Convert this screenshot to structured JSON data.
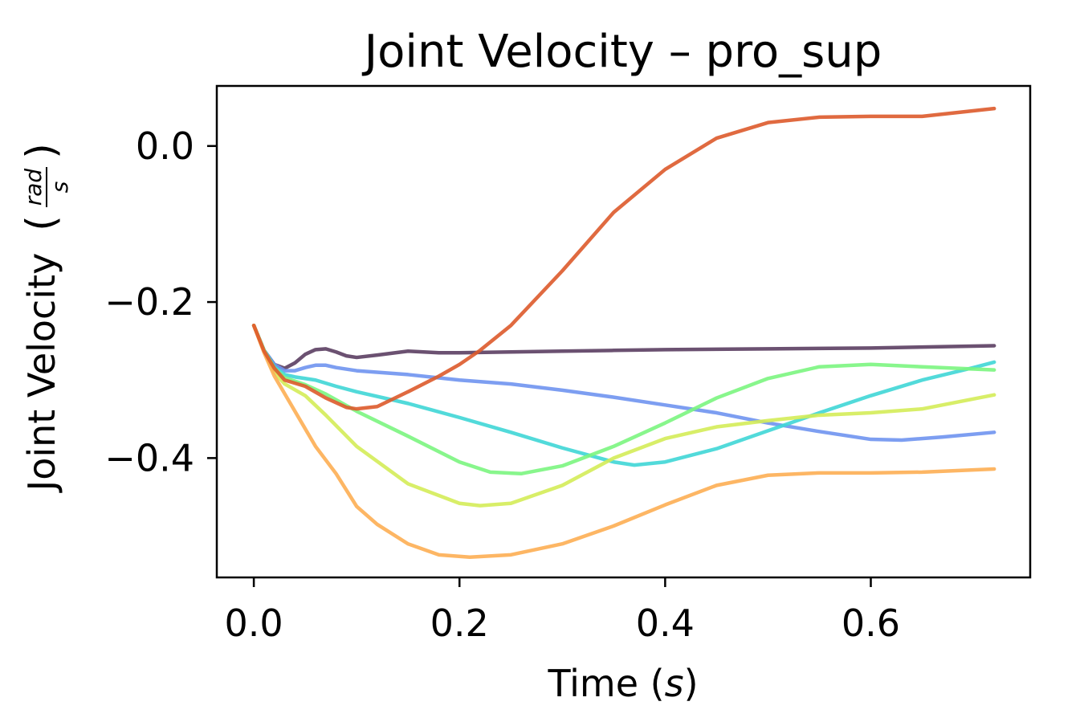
{
  "chart_data": {
    "type": "line",
    "title": "Joint Velocity – pro_sup",
    "xlabel_main": "Time (",
    "xlabel_unit": "s",
    "xlabel_close": ")",
    "ylabel_main": "Joint Velocity",
    "ylabel_unit_num": "rad",
    "ylabel_unit_den": "s",
    "xlim": [
      -0.036,
      0.755
    ],
    "ylim": [
      -0.553,
      0.077
    ],
    "xticks": [
      0.0,
      0.2,
      0.4,
      0.6
    ],
    "xtick_labels": [
      "0.0",
      "0.2",
      "0.4",
      "0.6"
    ],
    "yticks": [
      0.0,
      -0.2,
      -0.4
    ],
    "ytick_labels": [
      "0.0",
      "−0.2",
      "−0.4"
    ],
    "grid": false,
    "legend": "none",
    "series": [
      {
        "color": "#5b3e62",
        "points": [
          [
            0.0,
            -0.23
          ],
          [
            0.01,
            -0.262
          ],
          [
            0.02,
            -0.28
          ],
          [
            0.03,
            -0.285
          ],
          [
            0.04,
            -0.278
          ],
          [
            0.05,
            -0.267
          ],
          [
            0.06,
            -0.261
          ],
          [
            0.07,
            -0.26
          ],
          [
            0.08,
            -0.264
          ],
          [
            0.09,
            -0.269
          ],
          [
            0.1,
            -0.271
          ],
          [
            0.12,
            -0.268
          ],
          [
            0.15,
            -0.263
          ],
          [
            0.18,
            -0.265
          ],
          [
            0.2,
            -0.265
          ],
          [
            0.25,
            -0.264
          ],
          [
            0.3,
            -0.263
          ],
          [
            0.35,
            -0.262
          ],
          [
            0.4,
            -0.261
          ],
          [
            0.5,
            -0.26
          ],
          [
            0.6,
            -0.259
          ],
          [
            0.72,
            -0.256
          ]
        ]
      },
      {
        "color": "#6f93ef",
        "points": [
          [
            0.0,
            -0.23
          ],
          [
            0.01,
            -0.262
          ],
          [
            0.02,
            -0.28
          ],
          [
            0.03,
            -0.288
          ],
          [
            0.04,
            -0.288
          ],
          [
            0.05,
            -0.284
          ],
          [
            0.06,
            -0.281
          ],
          [
            0.07,
            -0.281
          ],
          [
            0.08,
            -0.284
          ],
          [
            0.1,
            -0.288
          ],
          [
            0.15,
            -0.293
          ],
          [
            0.2,
            -0.3
          ],
          [
            0.25,
            -0.305
          ],
          [
            0.3,
            -0.313
          ],
          [
            0.35,
            -0.322
          ],
          [
            0.4,
            -0.332
          ],
          [
            0.45,
            -0.342
          ],
          [
            0.5,
            -0.355
          ],
          [
            0.55,
            -0.366
          ],
          [
            0.6,
            -0.376
          ],
          [
            0.63,
            -0.377
          ],
          [
            0.67,
            -0.373
          ],
          [
            0.72,
            -0.367
          ]
        ]
      },
      {
        "color": "#3fd6d6",
        "points": [
          [
            0.0,
            -0.23
          ],
          [
            0.01,
            -0.262
          ],
          [
            0.02,
            -0.283
          ],
          [
            0.03,
            -0.293
          ],
          [
            0.04,
            -0.296
          ],
          [
            0.06,
            -0.3
          ],
          [
            0.08,
            -0.308
          ],
          [
            0.1,
            -0.315
          ],
          [
            0.15,
            -0.33
          ],
          [
            0.2,
            -0.348
          ],
          [
            0.25,
            -0.367
          ],
          [
            0.3,
            -0.387
          ],
          [
            0.35,
            -0.405
          ],
          [
            0.37,
            -0.409
          ],
          [
            0.4,
            -0.405
          ],
          [
            0.45,
            -0.388
          ],
          [
            0.5,
            -0.365
          ],
          [
            0.55,
            -0.342
          ],
          [
            0.6,
            -0.32
          ],
          [
            0.65,
            -0.3
          ],
          [
            0.7,
            -0.284
          ],
          [
            0.72,
            -0.277
          ]
        ]
      },
      {
        "color": "#7bf57f",
        "points": [
          [
            0.0,
            -0.23
          ],
          [
            0.01,
            -0.262
          ],
          [
            0.02,
            -0.285
          ],
          [
            0.03,
            -0.297
          ],
          [
            0.05,
            -0.306
          ],
          [
            0.07,
            -0.318
          ],
          [
            0.1,
            -0.34
          ],
          [
            0.15,
            -0.372
          ],
          [
            0.2,
            -0.405
          ],
          [
            0.23,
            -0.418
          ],
          [
            0.26,
            -0.42
          ],
          [
            0.3,
            -0.41
          ],
          [
            0.35,
            -0.385
          ],
          [
            0.4,
            -0.355
          ],
          [
            0.45,
            -0.323
          ],
          [
            0.5,
            -0.298
          ],
          [
            0.55,
            -0.283
          ],
          [
            0.6,
            -0.28
          ],
          [
            0.65,
            -0.283
          ],
          [
            0.72,
            -0.287
          ]
        ]
      },
      {
        "color": "#d4ec58",
        "points": [
          [
            0.0,
            -0.23
          ],
          [
            0.01,
            -0.263
          ],
          [
            0.02,
            -0.29
          ],
          [
            0.03,
            -0.305
          ],
          [
            0.05,
            -0.32
          ],
          [
            0.07,
            -0.345
          ],
          [
            0.1,
            -0.385
          ],
          [
            0.15,
            -0.433
          ],
          [
            0.2,
            -0.458
          ],
          [
            0.22,
            -0.461
          ],
          [
            0.25,
            -0.458
          ],
          [
            0.3,
            -0.435
          ],
          [
            0.35,
            -0.4
          ],
          [
            0.4,
            -0.375
          ],
          [
            0.45,
            -0.36
          ],
          [
            0.5,
            -0.352
          ],
          [
            0.55,
            -0.345
          ],
          [
            0.6,
            -0.342
          ],
          [
            0.65,
            -0.337
          ],
          [
            0.72,
            -0.319
          ]
        ]
      },
      {
        "color": "#fdae53",
        "points": [
          [
            0.0,
            -0.23
          ],
          [
            0.01,
            -0.265
          ],
          [
            0.02,
            -0.295
          ],
          [
            0.04,
            -0.34
          ],
          [
            0.06,
            -0.385
          ],
          [
            0.08,
            -0.42
          ],
          [
            0.1,
            -0.462
          ],
          [
            0.12,
            -0.485
          ],
          [
            0.15,
            -0.51
          ],
          [
            0.18,
            -0.524
          ],
          [
            0.21,
            -0.527
          ],
          [
            0.25,
            -0.524
          ],
          [
            0.3,
            -0.51
          ],
          [
            0.35,
            -0.487
          ],
          [
            0.4,
            -0.46
          ],
          [
            0.45,
            -0.435
          ],
          [
            0.5,
            -0.422
          ],
          [
            0.55,
            -0.419
          ],
          [
            0.6,
            -0.419
          ],
          [
            0.65,
            -0.418
          ],
          [
            0.72,
            -0.414
          ]
        ]
      },
      {
        "color": "#dd5a2b",
        "points": [
          [
            0.0,
            -0.23
          ],
          [
            0.01,
            -0.263
          ],
          [
            0.02,
            -0.285
          ],
          [
            0.03,
            -0.3
          ],
          [
            0.05,
            -0.308
          ],
          [
            0.07,
            -0.323
          ],
          [
            0.09,
            -0.335
          ],
          [
            0.1,
            -0.337
          ],
          [
            0.12,
            -0.334
          ],
          [
            0.15,
            -0.315
          ],
          [
            0.18,
            -0.295
          ],
          [
            0.2,
            -0.28
          ],
          [
            0.22,
            -0.262
          ],
          [
            0.25,
            -0.23
          ],
          [
            0.3,
            -0.16
          ],
          [
            0.35,
            -0.085
          ],
          [
            0.4,
            -0.03
          ],
          [
            0.45,
            0.01
          ],
          [
            0.5,
            0.03
          ],
          [
            0.55,
            0.037
          ],
          [
            0.6,
            0.038
          ],
          [
            0.65,
            0.038
          ],
          [
            0.72,
            0.048
          ]
        ]
      }
    ]
  }
}
